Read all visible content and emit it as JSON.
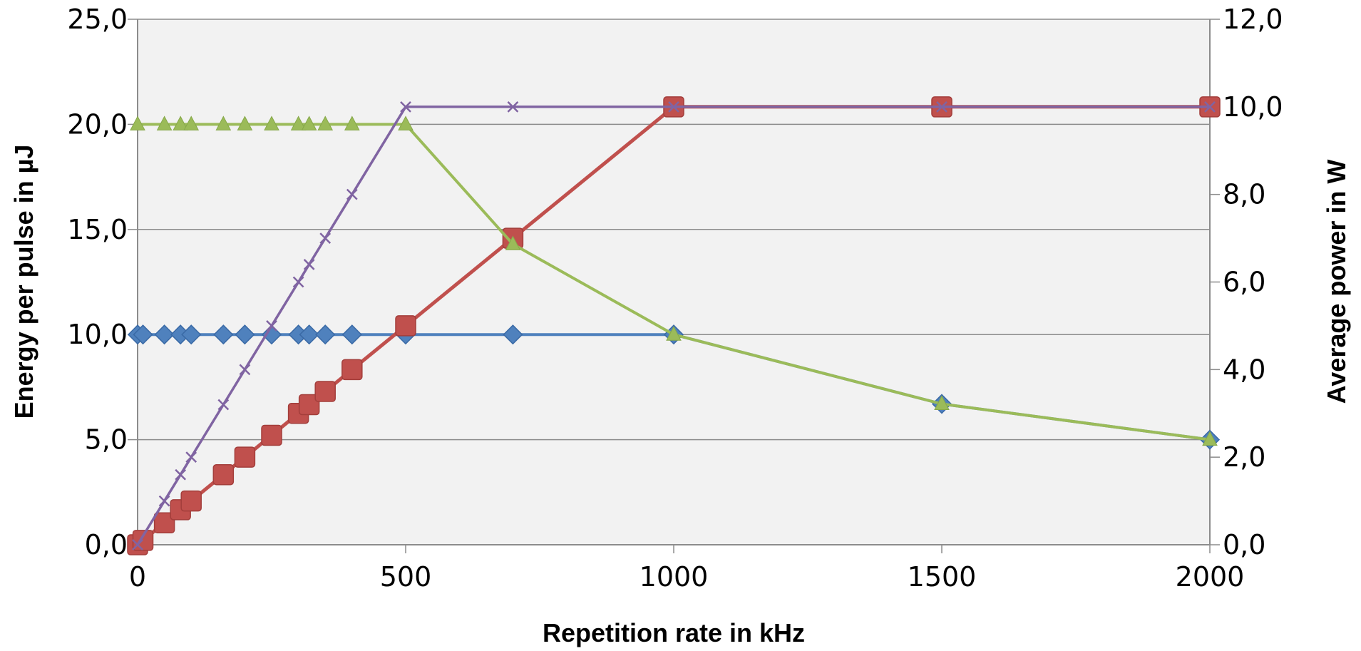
{
  "chart_data": {
    "type": "line",
    "title": "",
    "xlabel": "Repetition rate in kHz",
    "ylabel": "Energy per pulse in µJ",
    "y2label": "Average power in W",
    "xlim": [
      0,
      2000
    ],
    "ylim": [
      0,
      25
    ],
    "y2lim": [
      0,
      12
    ],
    "x_ticks": [
      "0",
      "500",
      "1000",
      "1500",
      "2000"
    ],
    "y_ticks": [
      "0,0",
      "5,0",
      "10,0",
      "15,0",
      "20,0",
      "25,0"
    ],
    "y2_ticks": [
      "0,0",
      "2,0",
      "4,0",
      "6,0",
      "8,0",
      "10,0",
      "12,0"
    ],
    "grid": true,
    "legend": "none",
    "series": [
      {
        "axis": "left",
        "color": "#4f81bd",
        "marker": "diamond",
        "x": [
          0,
          10,
          50,
          80,
          100,
          160,
          200,
          250,
          300,
          320,
          350,
          400,
          500,
          700,
          1000,
          1500,
          2000
        ],
        "y": [
          10,
          10,
          10,
          10,
          10,
          10,
          10,
          10,
          10,
          10,
          10,
          10,
          10,
          10,
          10,
          6.7,
          5
        ]
      },
      {
        "axis": "right",
        "color": "#c0504d",
        "marker": "square",
        "x": [
          0,
          10,
          50,
          80,
          100,
          160,
          200,
          250,
          300,
          320,
          350,
          400,
          500,
          700,
          1000,
          1500,
          2000
        ],
        "y": [
          0,
          0.1,
          0.5,
          0.8,
          1.0,
          1.6,
          2.0,
          2.5,
          3.0,
          3.2,
          3.5,
          4.0,
          5.0,
          7.0,
          10.0,
          10.0,
          10.0
        ]
      },
      {
        "axis": "left",
        "color": "#9bbb59",
        "marker": "triangle",
        "x": [
          0,
          50,
          80,
          100,
          160,
          200,
          250,
          300,
          320,
          350,
          400,
          500,
          700,
          1000,
          1500,
          2000
        ],
        "y": [
          20,
          20,
          20,
          20,
          20,
          20,
          20,
          20,
          20,
          20,
          20,
          20,
          14.3,
          10,
          6.7,
          5
        ]
      },
      {
        "axis": "right",
        "color": "#8064a2",
        "marker": "x",
        "x": [
          0,
          50,
          80,
          100,
          160,
          200,
          250,
          300,
          320,
          350,
          400,
          500,
          700,
          1000,
          1500,
          2000
        ],
        "y": [
          0,
          1.0,
          1.6,
          2.0,
          3.2,
          4.0,
          5.0,
          6.0,
          6.4,
          7.0,
          8.0,
          10.0,
          10.0,
          10.0,
          10.0,
          10.0
        ]
      }
    ]
  }
}
